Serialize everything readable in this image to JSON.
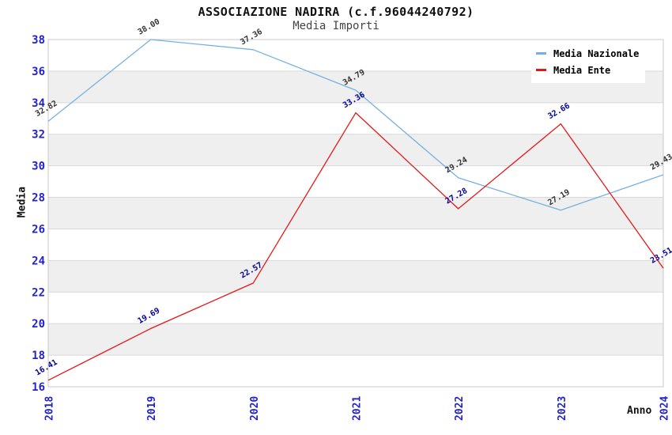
{
  "header": {
    "title": "ASSOCIAZIONE NADIRA (c.f.96044240792)",
    "subtitle": "Media Importi"
  },
  "chart_data": {
    "type": "line",
    "title": "ASSOCIAZIONE NADIRA (c.f.96044240792)",
    "subtitle": "Media Importi",
    "xlabel": "Anno",
    "ylabel": "Media",
    "categories": [
      "2018",
      "2019",
      "2020",
      "2021",
      "2022",
      "2023",
      "2024"
    ],
    "series": [
      {
        "name": "Media Nazionale",
        "color": "#74b1e3",
        "label_color": "#333333",
        "values": [
          32.82,
          38.0,
          37.36,
          34.79,
          29.24,
          27.19,
          29.43
        ]
      },
      {
        "name": "Media Ente",
        "color": "#e81717",
        "label_color": "#000099",
        "values": [
          16.41,
          19.69,
          22.57,
          33.36,
          27.28,
          32.66,
          23.51
        ]
      }
    ],
    "ylim": [
      16,
      38
    ],
    "ytick_step": 2,
    "axis_tick_color": "#2222cc",
    "band_colors": [
      "#ffffff",
      "#efefef"
    ],
    "grid_color": "#d9d9d9",
    "border_color": "#c9c9c9",
    "grid": "horizontal-bands",
    "legend_position": "top-right"
  }
}
